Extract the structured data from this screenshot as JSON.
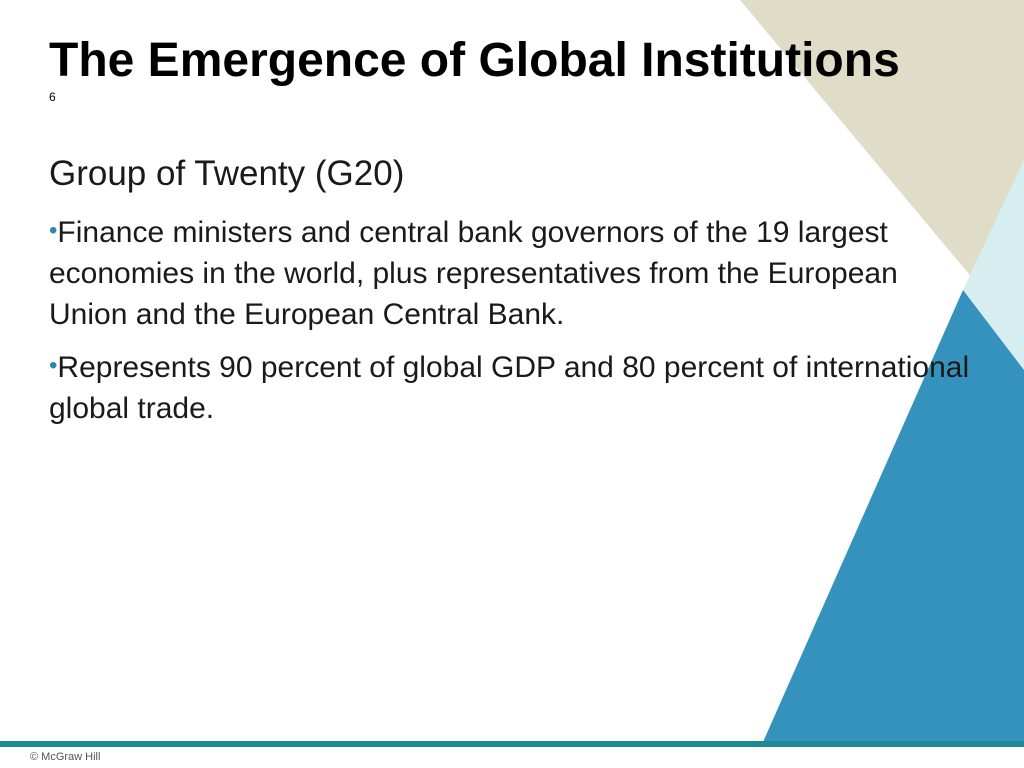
{
  "slide": {
    "title": "The Emergence of Global Institutions",
    "slide_number": "6",
    "subheading": "Group of Twenty (G20)",
    "bullet_char": "•",
    "bullets": [
      "Finance ministers and central bank governors of the 19 largest economies in the world, plus representatives from the European Union and the European Central Bank.",
      "Represents 90 percent of global GDP and 80 percent of international global trade."
    ]
  },
  "footer": {
    "copyright": "© McGraw Hill"
  },
  "colors": {
    "beige_triangle": "#dfdcc8",
    "light_blue_triangle": "#d7eef0",
    "blue_triangle": "#3592bd",
    "footer_bar": "#1e8a96",
    "bullet_mark": "#2e86b3"
  }
}
